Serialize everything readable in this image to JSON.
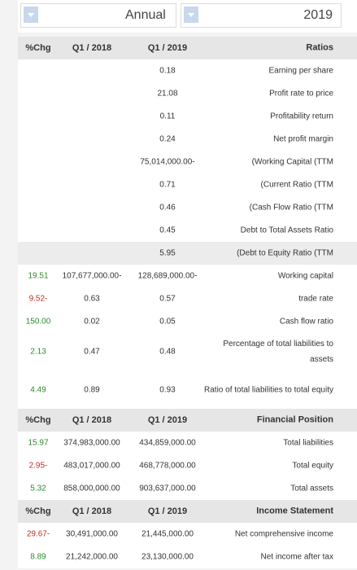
{
  "filters": {
    "period": "Annual",
    "year": "2019"
  },
  "table": {
    "sections": [
      {
        "header": {
          "change": "%Chg",
          "prev": "Q1 / 2018",
          "curr": "Q1 / 2019",
          "title": "Ratios"
        },
        "rows": [
          {
            "curr": "0.18",
            "label": "Earning per share"
          },
          {
            "curr": "21.08",
            "label": "Profit rate to price"
          },
          {
            "curr": "0.11",
            "label": "Profitability return"
          },
          {
            "curr": "0.24",
            "label": "Net profit margin"
          },
          {
            "curr": "75,014,000.00-",
            "label": "(Working Capital (TTM"
          },
          {
            "curr": "0.71",
            "label": "(Current Ratio (TTM"
          },
          {
            "curr": "0.46",
            "label": "(Cash Flow Ratio (TTM"
          },
          {
            "curr": "0.45",
            "label": "Debt to Total Assets Ratio"
          },
          {
            "curr": "5.95",
            "label": "(Debt to Equity Ratio (TTM",
            "highlight": true
          },
          {
            "change": "19.51",
            "change_color": "#2e8b2e",
            "prev": "107,677,000.00-",
            "curr": "128,689,000.00-",
            "label": "Working capital"
          },
          {
            "change": "9.52-",
            "change_color": "#c0302a",
            "prev": "0.63",
            "curr": "0.57",
            "label": "trade rate"
          },
          {
            "change": "150.00",
            "change_color": "#2e8b2e",
            "prev": "0.02",
            "curr": "0.05",
            "label": "Cash flow ratio"
          },
          {
            "change": "2.13",
            "change_color": "#2e8b2e",
            "prev": "0.47",
            "curr": "0.48",
            "label": "Percentage of total liabilities to assets",
            "tall": true
          },
          {
            "change": "4.49",
            "change_color": "#2e8b2e",
            "prev": "0.89",
            "curr": "0.93",
            "label": "Ratio of total liabilities to total equity",
            "tall": true
          }
        ]
      },
      {
        "header": {
          "change": "%Chg",
          "prev": "Q1 / 2018",
          "curr": "Q1 / 2019",
          "title": "Financial Position"
        },
        "rows": [
          {
            "change": "15.97",
            "change_color": "#2e8b2e",
            "prev": "374,983,000.00",
            "curr": "434,859,000.00",
            "label": "Total liabilities"
          },
          {
            "change": "2.95-",
            "change_color": "#c0302a",
            "prev": "483,017,000.00",
            "curr": "468,778,000.00",
            "label": "Total equity"
          },
          {
            "change": "5.32",
            "change_color": "#2e8b2e",
            "prev": "858,000,000.00",
            "curr": "903,637,000.00",
            "label": "Total assets"
          }
        ]
      },
      {
        "header": {
          "change": "%Chg",
          "prev": "Q1 / 2018",
          "curr": "Q1 / 2019",
          "title": "Income Statement"
        },
        "rows": [
          {
            "change": "29.67-",
            "change_color": "#c0302a",
            "prev": "30,491,000.00",
            "curr": "21,445,000.00",
            "label": "Net comprehensive income"
          },
          {
            "change": "8.89",
            "change_color": "#2e8b2e",
            "prev": "21,242,000.00",
            "curr": "23,130,000.00",
            "label": "Net income after tax"
          }
        ]
      }
    ]
  }
}
